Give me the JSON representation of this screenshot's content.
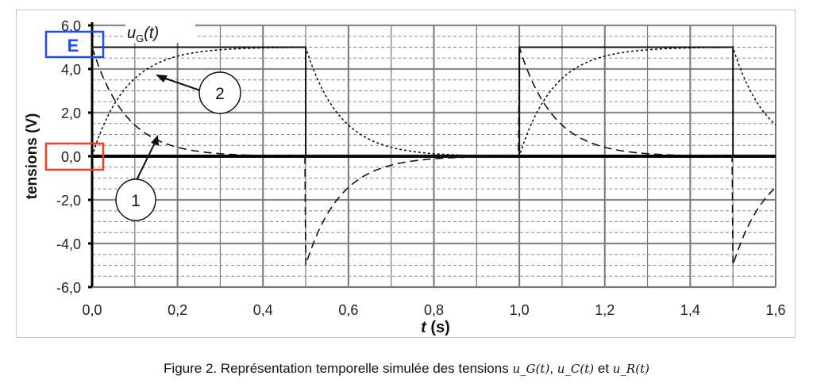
{
  "chart_data": {
    "type": "line",
    "title": "",
    "xlabel_var": "t",
    "xlabel_unit": " (s)",
    "ylabel": "tensions (V)",
    "xlim": [
      0,
      1.6
    ],
    "ylim": [
      -6,
      6
    ],
    "xticks": [
      "0,0",
      "0,2",
      "0,4",
      "0,6",
      "0,8",
      "1,0",
      "1,2",
      "1,4",
      "1,6"
    ],
    "xtick_values": [
      0,
      0.2,
      0.4,
      0.6,
      0.8,
      1.0,
      1.2,
      1.4,
      1.6
    ],
    "yticks": [
      "6,0",
      "4,0",
      "2,0",
      "0,0",
      "-2,0",
      "-4,0",
      "-6,0"
    ],
    "ytick_values": [
      6,
      4,
      2,
      0,
      -2,
      -4,
      -6
    ],
    "grid": true,
    "model": {
      "E": 5,
      "tau": 0.08,
      "period": 1.0,
      "high_duration": 0.5
    },
    "series": [
      {
        "name": "uG(t)",
        "style": "solid",
        "description_points": [
          [
            0,
            5
          ],
          [
            0.5,
            5
          ],
          [
            0.5,
            0
          ],
          [
            1.0,
            0
          ],
          [
            1.0,
            5
          ],
          [
            1.5,
            5
          ],
          [
            1.5,
            0
          ],
          [
            1.6,
            0
          ]
        ]
      },
      {
        "name": "courbe 2 (uC)",
        "style": "dotted"
      },
      {
        "name": "courbe 1 (uR)",
        "style": "dashed"
      }
    ],
    "annotations": {
      "ug_label_main": "u",
      "ug_label_sub": "G",
      "ug_label_arg": "(t)",
      "E_label": "E",
      "circle_1": "1",
      "circle_2": "2"
    },
    "colors": {
      "E_box": "#1a4bff",
      "zero_box": "#ff3a1a"
    }
  },
  "caption": {
    "text": "Figure 2. Représentation temporelle simulée des tensions ",
    "ug": "u_G(t)",
    "sep": ", ",
    "uc": "u_C(t)",
    "and": " et ",
    "ur": "u_R(t)"
  }
}
